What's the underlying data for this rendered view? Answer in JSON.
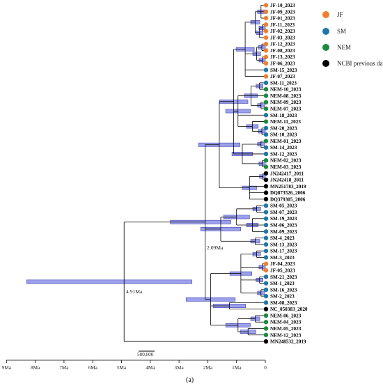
{
  "groups": [
    {
      "key": "JF",
      "label": "JF",
      "color": "#f07f2d"
    },
    {
      "key": "SM",
      "label": "SM",
      "color": "#1f77a8"
    },
    {
      "key": "NEM",
      "label": "NEM",
      "color": "#1a8a3f"
    },
    {
      "key": "NCBI",
      "label": "NCBI previous data",
      "color": "#000000"
    }
  ],
  "tips": [
    {
      "label": "JF-10_2023",
      "group": "JF"
    },
    {
      "label": "JF-09_2023",
      "group": "JF"
    },
    {
      "label": "JF-01_2023",
      "group": "JF"
    },
    {
      "label": "JF-11_2023",
      "group": "JF"
    },
    {
      "label": "JF-02_2023",
      "group": "JF"
    },
    {
      "label": "JF-03_2023",
      "group": "JF"
    },
    {
      "label": "JF-12_2023",
      "group": "JF"
    },
    {
      "label": "JF-08_2023",
      "group": "JF"
    },
    {
      "label": "JF-13_2023",
      "group": "JF"
    },
    {
      "label": "JF-06_2023",
      "group": "JF"
    },
    {
      "label": "SM-15_2023",
      "group": "SM"
    },
    {
      "label": "JF-07_2023",
      "group": "JF"
    },
    {
      "label": "SM-11_2023",
      "group": "SM"
    },
    {
      "label": "NEM-10_2023",
      "group": "NEM"
    },
    {
      "label": "NEM-08_2023",
      "group": "NEM"
    },
    {
      "label": "NEM-09_2023",
      "group": "NEM"
    },
    {
      "label": "NEM-07_2023",
      "group": "NEM"
    },
    {
      "label": "SM-18_2023",
      "group": "SM"
    },
    {
      "label": "NEM-11_2023",
      "group": "NEM"
    },
    {
      "label": "SM-20_2023",
      "group": "SM"
    },
    {
      "label": "SM-10_2023",
      "group": "SM"
    },
    {
      "label": "NEM-01_2023",
      "group": "NEM"
    },
    {
      "label": "SM-14_2023",
      "group": "SM"
    },
    {
      "label": "SM-12_2023",
      "group": "SM"
    },
    {
      "label": "NEM-02_2023",
      "group": "NEM"
    },
    {
      "label": "NEM-03_2023",
      "group": "NEM"
    },
    {
      "label": "JN242417_2011",
      "group": "NCBI"
    },
    {
      "label": "JN242418_2011",
      "group": "NCBI"
    },
    {
      "label": "MN251783_2019",
      "group": "NCBI"
    },
    {
      "label": "DQ873526_2006",
      "group": "NCBI"
    },
    {
      "label": "DQ379305_2006",
      "group": "NCBI"
    },
    {
      "label": "SM-05_2023",
      "group": "SM"
    },
    {
      "label": "SM-07_2023",
      "group": "SM"
    },
    {
      "label": "SM-19_2023",
      "group": "SM"
    },
    {
      "label": "SM-06_2023",
      "group": "SM"
    },
    {
      "label": "SM-09_2023",
      "group": "SM"
    },
    {
      "label": "SM-4_2023",
      "group": "SM"
    },
    {
      "label": "SM-13_2023",
      "group": "SM"
    },
    {
      "label": "SM-17_2023",
      "group": "SM"
    },
    {
      "label": "SM-3_2023",
      "group": "SM"
    },
    {
      "label": "JF-04_2023",
      "group": "JF"
    },
    {
      "label": "JF-05_2023",
      "group": "JF"
    },
    {
      "label": "SM-21_2023",
      "group": "SM"
    },
    {
      "label": "SM-1_2023",
      "group": "SM"
    },
    {
      "label": "SM-16_2023",
      "group": "SM"
    },
    {
      "label": "SM-2_2023",
      "group": "SM"
    },
    {
      "label": "SM-08_2023",
      "group": "SM"
    },
    {
      "label": "NC_050383_2020",
      "group": "NCBI"
    },
    {
      "label": "NEM-06_2023",
      "group": "NEM"
    },
    {
      "label": "NEM-04_2023",
      "group": "NEM"
    },
    {
      "label": "NEM-05_2023",
      "group": "NEM"
    },
    {
      "label": "NEM-12_2023",
      "group": "NEM"
    },
    {
      "label": "MN248532_2019",
      "group": "NCBI"
    }
  ],
  "axis": {
    "unit": "Ma",
    "ticks": [
      "9Ma",
      "8Ma",
      "7Ma",
      "6Ma",
      "5Ma",
      "4Ma",
      "3Ma",
      "2Ma",
      "1Ma",
      "0"
    ]
  },
  "node_ages": [
    {
      "label": "4.91Ma",
      "age": 4.91,
      "hpd": [
        2.55,
        8.3
      ]
    },
    {
      "label": "2.09Ma",
      "age": 2.09,
      "hpd": [
        1.2,
        3.3
      ]
    }
  ],
  "scale_bar": {
    "label": "500,000"
  },
  "caption": "(a)"
}
